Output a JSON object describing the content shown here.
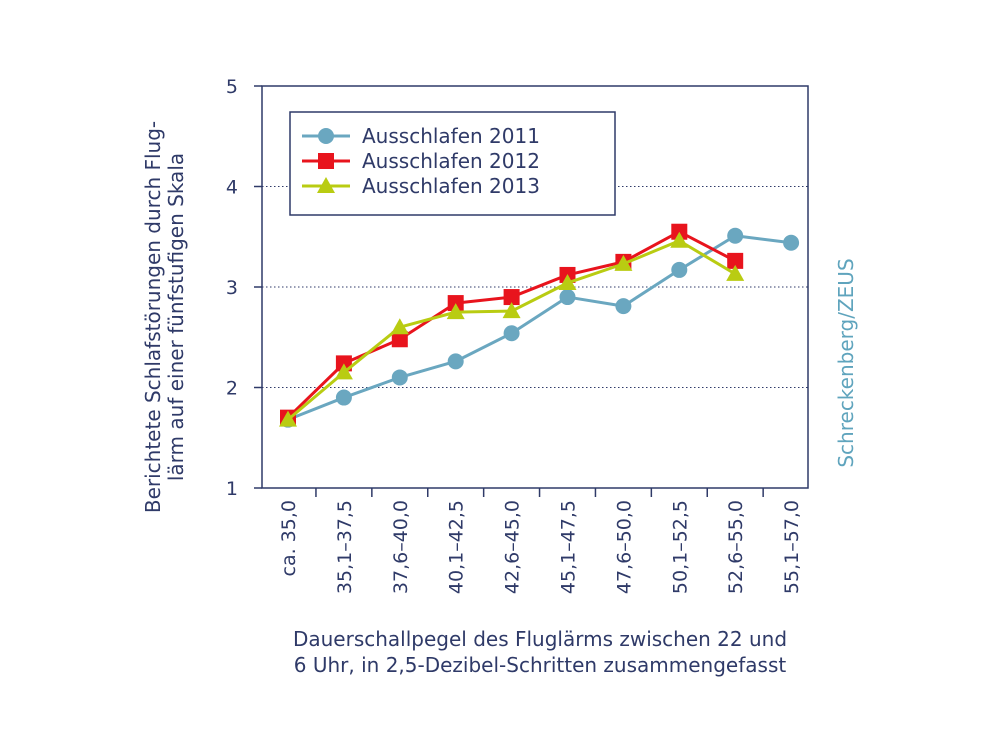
{
  "chart_data": {
    "type": "line",
    "categories": [
      "ca. 35,0",
      "35,1–37,5",
      "37,6–40,0",
      "40,1–42,5",
      "42,6–45,0",
      "45,1–47,5",
      "47,6–50,0",
      "50,1–52,5",
      "52,6–55,0",
      "55,1–57,0"
    ],
    "series": [
      {
        "name": "Ausschlafen 2011",
        "color": "#6aa7c0",
        "marker": "circle",
        "values": [
          1.68,
          1.9,
          2.1,
          2.26,
          2.54,
          2.9,
          2.81,
          3.17,
          3.51,
          3.44
        ]
      },
      {
        "name": "Ausschlafen 2012",
        "color": "#e8141d",
        "marker": "square",
        "values": [
          1.7,
          2.24,
          2.48,
          2.84,
          2.9,
          3.12,
          3.25,
          3.55,
          3.26,
          null
        ]
      },
      {
        "name": "Ausschlafen 2013",
        "color": "#b9cc12",
        "marker": "triangle",
        "values": [
          1.68,
          2.15,
          2.6,
          2.75,
          2.76,
          3.04,
          3.23,
          3.46,
          3.13,
          null
        ]
      }
    ],
    "ylim": [
      1,
      5
    ],
    "yticks": [
      "1",
      "2",
      "3",
      "4",
      "5"
    ],
    "grid": true,
    "ylabel_line1": "Berichtete Schlafstörungen durch Flug-",
    "ylabel_line2": "lärm auf einer fünfstufigen Skala",
    "xlabel_line1": "Dauerschallpegel des Fluglärms zwischen 22 und",
    "xlabel_line2": "6 Uhr, in 2,5-Dezibel-Schritten zusammengefasst",
    "legend_position": "top-left"
  },
  "credit": "Schreckenberg/ZEUS"
}
